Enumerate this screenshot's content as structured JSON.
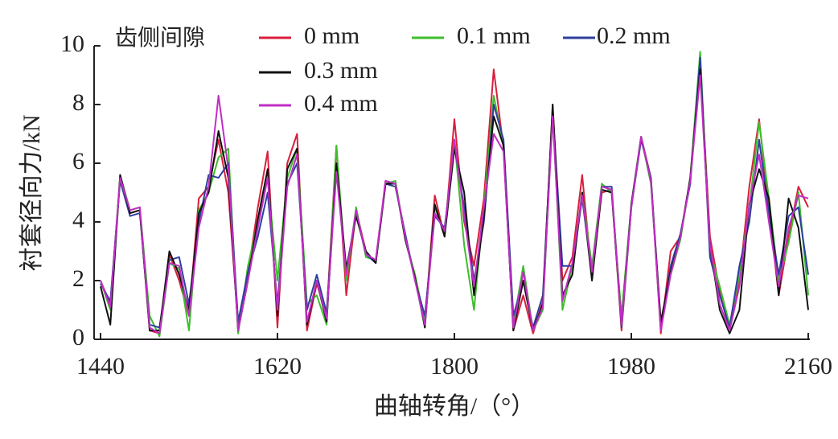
{
  "chart_data": {
    "type": "line",
    "xlabel": "曲轴转角/（°）",
    "ylabel": "衬套径向力/kN",
    "legend_title": "齿侧间隙",
    "x": [
      1440,
      1450,
      1460,
      1470,
      1480,
      1490,
      1500,
      1510,
      1520,
      1530,
      1540,
      1550,
      1560,
      1570,
      1580,
      1590,
      1600,
      1610,
      1620,
      1630,
      1640,
      1650,
      1660,
      1670,
      1680,
      1690,
      1700,
      1710,
      1720,
      1730,
      1740,
      1750,
      1760,
      1770,
      1780,
      1790,
      1800,
      1810,
      1820,
      1830,
      1840,
      1850,
      1860,
      1870,
      1880,
      1890,
      1900,
      1910,
      1920,
      1930,
      1940,
      1950,
      1960,
      1970,
      1980,
      1990,
      2000,
      2010,
      2020,
      2030,
      2040,
      2050,
      2060,
      2070,
      2080,
      2090,
      2100,
      2110,
      2120,
      2130,
      2140,
      2150,
      2160
    ],
    "series": [
      {
        "name": "0 mm",
        "color": "#d8203c",
        "values": [
          2.0,
          1.2,
          5.5,
          4.3,
          4.4,
          0.3,
          0.2,
          2.9,
          2.0,
          0.8,
          4.8,
          5.2,
          6.8,
          5.0,
          0.5,
          2.2,
          4.5,
          6.4,
          0.4,
          6.0,
          7.0,
          0.3,
          1.9,
          0.8,
          6.6,
          1.5,
          4.4,
          3.0,
          2.6,
          5.4,
          5.3,
          3.5,
          2.1,
          0.5,
          4.9,
          3.5,
          7.5,
          4.0,
          2.5,
          4.8,
          9.2,
          6.5,
          0.3,
          1.5,
          0.2,
          1.3,
          8.0,
          2.0,
          2.8,
          5.6,
          2.1,
          5.0,
          5.1,
          0.3,
          4.5,
          6.9,
          5.5,
          0.2,
          3.0,
          3.5,
          5.5,
          9.5,
          3.5,
          1.6,
          0.3,
          2.0,
          5.2,
          7.5,
          4.4,
          1.5,
          3.5,
          5.2,
          4.5
        ]
      },
      {
        "name": "0.1 mm",
        "color": "#3cbf2a",
        "values": [
          2.0,
          1.0,
          5.6,
          4.4,
          4.5,
          0.8,
          0.1,
          2.6,
          2.4,
          0.3,
          4.4,
          5.0,
          6.2,
          6.5,
          0.2,
          2.5,
          4.0,
          5.5,
          2.0,
          5.5,
          6.5,
          1.2,
          1.5,
          0.5,
          6.6,
          2.0,
          4.5,
          2.8,
          2.7,
          5.3,
          5.4,
          3.4,
          2.2,
          0.6,
          4.5,
          3.6,
          6.8,
          3.2,
          1.0,
          4.5,
          8.3,
          6.6,
          0.5,
          2.5,
          0.3,
          1.0,
          7.8,
          1.0,
          2.5,
          5.0,
          2.5,
          5.3,
          5.0,
          0.8,
          4.6,
          6.9,
          5.3,
          0.5,
          2.2,
          3.4,
          5.5,
          9.8,
          3.0,
          1.8,
          0.5,
          2.2,
          4.5,
          7.4,
          4.8,
          2.0,
          3.3,
          5.0,
          1.5
        ]
      },
      {
        "name": "0.2 mm",
        "color": "#2f3f9e",
        "values": [
          1.9,
          1.3,
          5.4,
          4.2,
          4.3,
          0.5,
          0.4,
          2.7,
          2.8,
          1.2,
          4.0,
          5.6,
          5.5,
          6.0,
          0.6,
          2.3,
          3.5,
          5.0,
          1.2,
          5.3,
          6.0,
          1.0,
          2.2,
          0.9,
          5.8,
          2.3,
          4.3,
          2.9,
          2.6,
          5.3,
          5.2,
          3.6,
          2.0,
          0.8,
          4.2,
          3.8,
          6.6,
          4.5,
          2.0,
          4.0,
          8.0,
          6.8,
          0.8,
          2.0,
          0.4,
          1.5,
          7.8,
          2.5,
          2.5,
          4.8,
          2.2,
          5.2,
          5.2,
          0.4,
          4.5,
          6.8,
          5.5,
          0.4,
          2.5,
          3.6,
          5.3,
          9.6,
          2.8,
          1.5,
          0.4,
          2.5,
          4.0,
          6.8,
          4.3,
          2.2,
          4.2,
          4.5,
          2.2
        ]
      },
      {
        "name": "0.3 mm",
        "color": "#111111",
        "values": [
          1.8,
          0.5,
          5.6,
          4.3,
          4.4,
          0.3,
          0.3,
          3.0,
          2.2,
          1.0,
          4.3,
          5.0,
          7.1,
          5.5,
          0.3,
          2.0,
          4.1,
          5.8,
          0.8,
          5.8,
          6.5,
          0.5,
          2.0,
          0.6,
          6.0,
          2.4,
          4.2,
          3.0,
          2.6,
          5.3,
          5.3,
          3.4,
          2.1,
          0.4,
          4.6,
          3.5,
          6.5,
          5.0,
          1.5,
          4.2,
          7.6,
          6.6,
          0.3,
          2.0,
          0.3,
          1.2,
          8.0,
          1.5,
          2.2,
          5.0,
          2.0,
          5.1,
          5.0,
          0.5,
          4.6,
          6.9,
          5.4,
          0.6,
          2.3,
          3.5,
          5.5,
          9.2,
          3.2,
          1.0,
          0.2,
          1.0,
          4.6,
          5.8,
          4.8,
          1.5,
          4.8,
          3.8,
          1.0
        ]
      },
      {
        "name": "0.4 mm",
        "color": "#c02ec4",
        "values": [
          2.0,
          1.1,
          5.5,
          4.4,
          4.5,
          0.4,
          0.2,
          2.6,
          2.5,
          0.8,
          3.8,
          5.2,
          8.3,
          5.8,
          0.3,
          2.0,
          3.8,
          5.5,
          1.0,
          5.2,
          6.3,
          0.6,
          2.0,
          0.7,
          5.7,
          2.2,
          4.4,
          2.9,
          2.7,
          5.4,
          5.3,
          3.5,
          2.0,
          0.5,
          4.3,
          3.7,
          6.8,
          4.2,
          1.8,
          4.5,
          7.0,
          6.4,
          0.4,
          2.3,
          0.3,
          1.1,
          7.6,
          1.3,
          2.6,
          4.9,
          2.3,
          5.2,
          5.1,
          0.5,
          4.5,
          6.9,
          5.4,
          0.3,
          2.2,
          3.5,
          5.4,
          9.0,
          3.2,
          1.2,
          0.3,
          1.8,
          4.6,
          6.3,
          4.0,
          1.8,
          3.8,
          4.9,
          4.8
        ]
      }
    ],
    "xlim": [
      1440,
      2160
    ],
    "xticks": [
      1440,
      1620,
      1800,
      1980,
      2160
    ],
    "ylim": [
      0,
      10
    ],
    "yticks": [
      0,
      2,
      4,
      6,
      8,
      10
    ]
  }
}
